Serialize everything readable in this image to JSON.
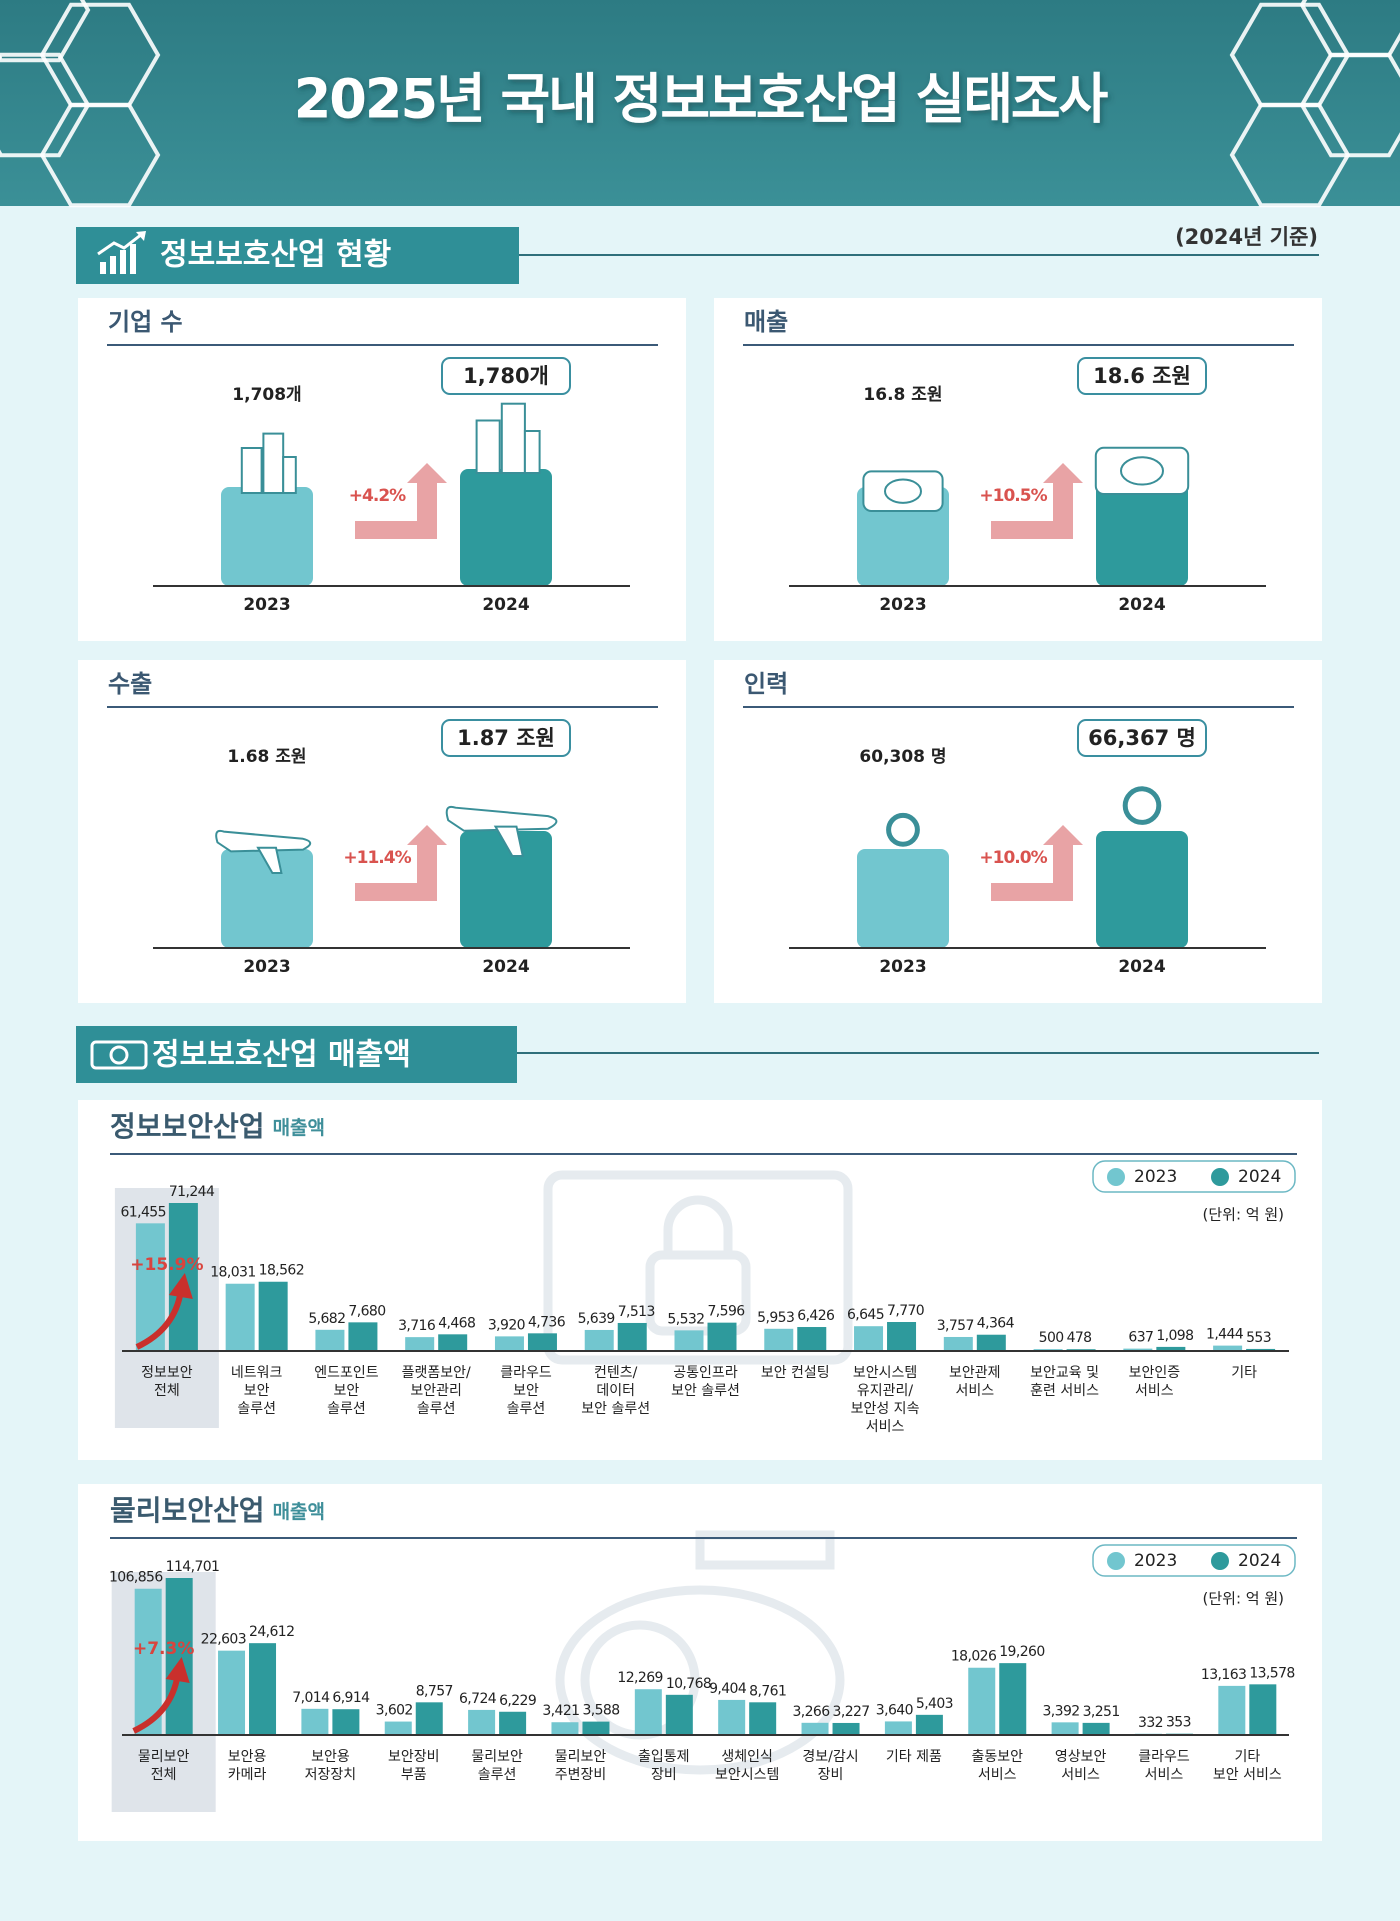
{
  "header": {
    "title": "2025년 국내 정보보호산업 실태조사"
  },
  "overview": {
    "title": "정보보호산업 현황",
    "basis": "(2024년 기준)",
    "panels": [
      {
        "title": "기업 수",
        "years": [
          "2023",
          "2024"
        ],
        "values": [
          "1,708개",
          "1,780개"
        ],
        "growth": "+4.2%"
      },
      {
        "title": "매출",
        "years": [
          "2023",
          "2024"
        ],
        "values": [
          "16.8 조원",
          "18.6 조원"
        ],
        "growth": "+10.5%"
      },
      {
        "title": "수출",
        "years": [
          "2023",
          "2024"
        ],
        "values": [
          "1.68 조원",
          "1.87 조원"
        ],
        "growth": "+11.4%"
      },
      {
        "title": "인력",
        "years": [
          "2023",
          "2024"
        ],
        "values": [
          "60,308 명",
          "66,367 명"
        ],
        "growth": "+10.0%"
      }
    ]
  },
  "sales_section": {
    "title": "정보보호산업 매출액"
  },
  "chart_data": [
    {
      "type": "bar",
      "title": "정보보안산업",
      "subtitle": "매출액",
      "unit": "(단위: 억 원)",
      "annotation": "+15.9%",
      "categories": [
        "정보보안\n전체",
        "네트워크\n보안\n솔루션",
        "엔드포인트\n보안\n솔루션",
        "플랫폼보안/\n보안관리\n솔루션",
        "클라우드\n보안\n솔루션",
        "컨텐츠/\n데이터\n보안 솔루션",
        "공통인프라\n보안 솔루션",
        "보안 컨설팅",
        "보안시스템\n유지관리/\n보안성 지속\n서비스",
        "보안관제\n서비스",
        "보안교육 및\n훈련 서비스",
        "보안인증\n서비스",
        "기타"
      ],
      "series": [
        {
          "name": "2023",
          "color": "#72c6cf",
          "values": [
            61455,
            18031,
            5682,
            3716,
            3920,
            5639,
            5532,
            5953,
            6645,
            3757,
            500,
            637,
            1444
          ],
          "value_labels": [
            "61,455",
            "18,031",
            "5,682",
            "3,716",
            "3,920",
            "5,639",
            "5,532",
            "5,953",
            "6,645",
            "3,757",
            "500",
            "637",
            "1,444"
          ]
        },
        {
          "name": "2024",
          "color": "#2e9a9c",
          "values": [
            71244,
            18562,
            7680,
            4468,
            4736,
            7513,
            7596,
            6426,
            7770,
            4364,
            478,
            1098,
            553
          ],
          "value_labels": [
            "71,244",
            "18,562",
            "7,680",
            "4,468",
            "4,736",
            "7,513",
            "7,596",
            "6,426",
            "7,770",
            "4,364",
            "478",
            "1,098",
            "553"
          ]
        }
      ]
    },
    {
      "type": "bar",
      "title": "물리보안산업",
      "subtitle": "매출액",
      "unit": "(단위: 억 원)",
      "annotation": "+7.3%",
      "categories": [
        "물리보안\n전체",
        "보안용\n카메라",
        "보안용\n저장장치",
        "보안장비\n부품",
        "물리보안\n솔루션",
        "물리보안\n주변장비",
        "출입통제\n장비",
        "생체인식\n보안시스템",
        "경보/감시\n장비",
        "기타 제품",
        "출동보안\n서비스",
        "영상보안\n서비스",
        "클라우드\n서비스",
        "기타\n보안 서비스"
      ],
      "series": [
        {
          "name": "2023",
          "color": "#72c6cf",
          "values": [
            106856,
            22603,
            7014,
            3602,
            6724,
            3421,
            12269,
            9404,
            3266,
            3640,
            18026,
            3392,
            332,
            13163
          ],
          "value_labels": [
            "106,856",
            "22,603",
            "7,014",
            "3,602",
            "6,724",
            "3,421",
            "12,269",
            "9,404",
            "3,266",
            "3,640",
            "18,026",
            "3,392",
            "332",
            "13,163"
          ]
        },
        {
          "name": "2024",
          "color": "#2e9a9c",
          "values": [
            114701,
            24612,
            6914,
            8757,
            6229,
            3588,
            10768,
            8761,
            3227,
            5403,
            19260,
            3251,
            353,
            13578
          ],
          "value_labels": [
            "114,701",
            "24,612",
            "6,914",
            "8,757",
            "6,229",
            "3,588",
            "10,768",
            "8,761",
            "3,227",
            "5,403",
            "19,260",
            "3,251",
            "353",
            "13,578"
          ]
        }
      ]
    }
  ]
}
